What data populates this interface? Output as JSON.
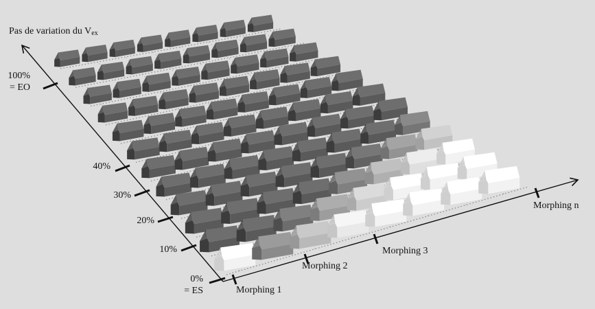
{
  "title": {
    "text": "Pas de variation du V",
    "subscript": "ex"
  },
  "y_axis": {
    "ticks": [
      {
        "label": "0%",
        "sublabel": "= ES"
      },
      {
        "label": "10%"
      },
      {
        "label": "20%"
      },
      {
        "label": "30%"
      },
      {
        "label": "40%"
      },
      {
        "label": "100%",
        "sublabel": "= EO"
      }
    ]
  },
  "x_axis": {
    "ticks": [
      {
        "label": "Morphing 1"
      },
      {
        "label": "Morphing 2"
      },
      {
        "label": "Morphing 3"
      },
      {
        "label": "Morphing n"
      }
    ]
  },
  "colors": {
    "background": "#dedede",
    "axis": "#111111",
    "grid_dots": "#8a8a8a",
    "house_dark": "#5a5a5a",
    "house_light": "#f2f2f2"
  },
  "grid": {
    "rows": 12,
    "columns": 8
  }
}
